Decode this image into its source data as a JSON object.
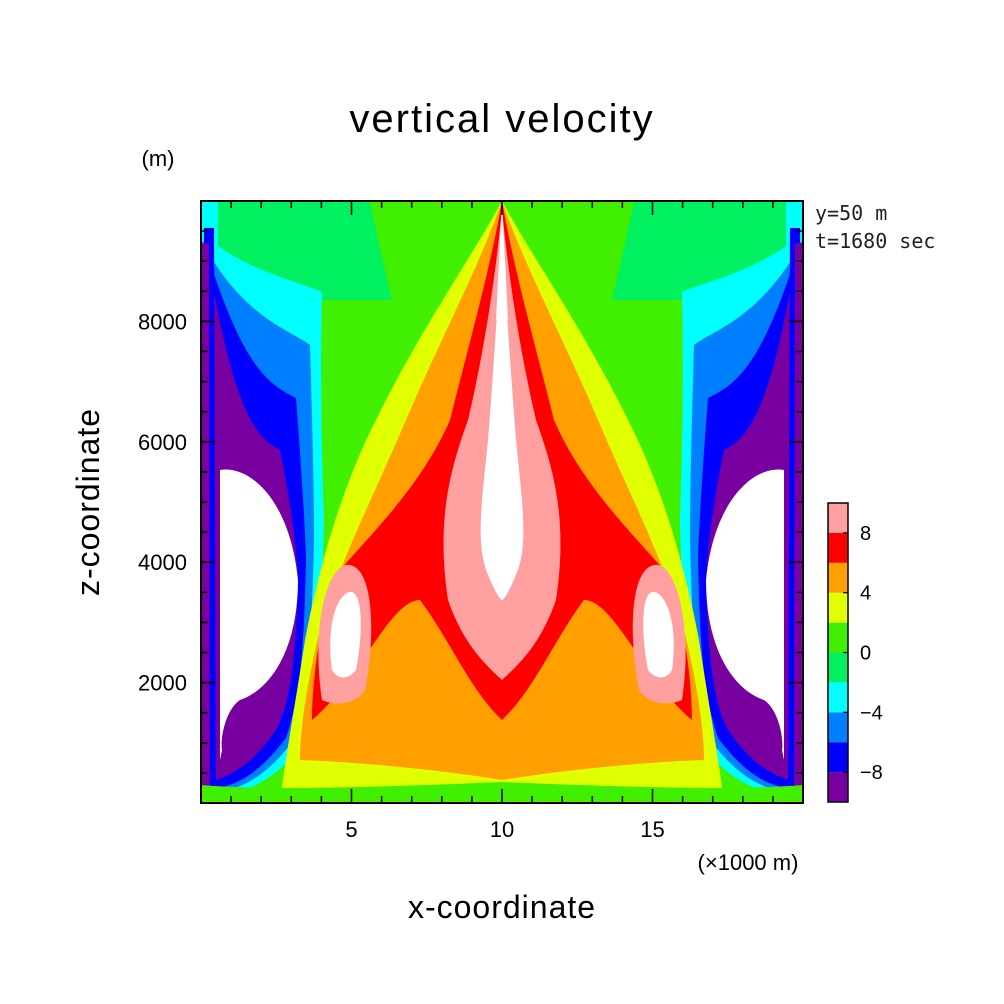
{
  "chart_data": {
    "type": "heatmap",
    "title": "vertical velocity",
    "xlabel": "x-coordinate",
    "ylabel": "z-coordinate",
    "x_unit": "(×1000 m)",
    "y_unit": "(m)",
    "xlim": [
      0,
      20
    ],
    "ylim": [
      0,
      10000
    ],
    "x_ticks": [
      "5",
      "10",
      "15"
    ],
    "y_ticks": [
      "2000",
      "4000",
      "6000",
      "8000"
    ],
    "annotations": [
      "y=50 m",
      "t=1680 sec"
    ],
    "grid": false,
    "legend": "right",
    "colorbar": {
      "levels": [
        -10,
        -8,
        -6,
        -4,
        -2,
        0,
        2,
        4,
        6,
        8,
        10
      ],
      "tick_labels": [
        "8",
        "4",
        "0",
        "−4",
        "−8"
      ],
      "colors_bottom_to_top": [
        "#7800a0",
        "#0000ff",
        "#0080ff",
        "#00ffff",
        "#00f060",
        "#40f000",
        "#e0ff00",
        "#ffa000",
        "#ff0000",
        "#ffa0a0"
      ],
      "above_max_color": "#ffffff"
    },
    "features": [
      {
        "name": "central updraft core",
        "x": 10,
        "z": 4800,
        "value": ">10"
      },
      {
        "name": "left secondary updraft",
        "x": 4.8,
        "z": 2900,
        "value": ">8"
      },
      {
        "name": "right secondary updraft",
        "x": 15.2,
        "z": 2900,
        "value": ">8"
      },
      {
        "name": "left downdraft core",
        "x": 1.5,
        "z": 3300,
        "value": "<-10"
      },
      {
        "name": "right downdraft core",
        "x": 18.5,
        "z": 3300,
        "value": "<-10"
      }
    ]
  }
}
